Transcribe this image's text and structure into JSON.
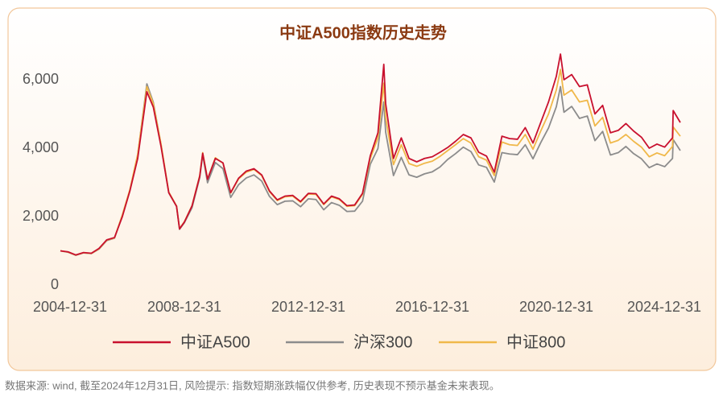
{
  "chart_data": {
    "type": "line",
    "title": "中证A500指数历史走势",
    "note": "数据来源: wind, 截至2024年12月31日, 风险提示: 指数短期涨跌幅仅供参考, 历史表现不预示基金未来表现。",
    "x": [
      "2004-12-31",
      "2005-03-31",
      "2005-06-30",
      "2005-09-30",
      "2005-12-31",
      "2006-03-31",
      "2006-06-30",
      "2006-09-30",
      "2006-12-31",
      "2007-03-31",
      "2007-06-30",
      "2007-10-16",
      "2007-12-31",
      "2008-03-31",
      "2008-06-30",
      "2008-09-30",
      "2008-11-04",
      "2008-12-31",
      "2009-03-31",
      "2009-06-30",
      "2009-08-04",
      "2009-09-30",
      "2009-12-31",
      "2010-03-31",
      "2010-06-30",
      "2010-09-30",
      "2010-12-31",
      "2011-03-31",
      "2011-06-30",
      "2011-09-30",
      "2011-12-31",
      "2012-03-31",
      "2012-06-30",
      "2012-09-30",
      "2012-12-31",
      "2013-03-31",
      "2013-06-30",
      "2013-09-30",
      "2013-12-31",
      "2014-03-31",
      "2014-06-30",
      "2014-09-30",
      "2014-12-31",
      "2015-03-31",
      "2015-06-08",
      "2015-06-30",
      "2015-09-30",
      "2015-12-31",
      "2016-03-31",
      "2016-06-30",
      "2016-09-30",
      "2016-12-31",
      "2017-03-31",
      "2017-06-30",
      "2017-09-30",
      "2017-12-31",
      "2018-03-31",
      "2018-06-30",
      "2018-09-30",
      "2018-12-31",
      "2019-03-31",
      "2019-06-30",
      "2019-09-30",
      "2019-12-31",
      "2020-03-31",
      "2020-06-30",
      "2020-09-30",
      "2020-12-31",
      "2021-02-18",
      "2021-03-31",
      "2021-06-30",
      "2021-09-30",
      "2021-12-31",
      "2022-03-31",
      "2022-06-30",
      "2022-09-30",
      "2022-12-31",
      "2023-03-31",
      "2023-06-30",
      "2023-09-30",
      "2023-12-31",
      "2024-03-31",
      "2024-06-30",
      "2024-09-30",
      "2024-10-08",
      "2024-12-31"
    ],
    "series": [
      {
        "name": "中证A500",
        "color": "#c8102e",
        "values": [
          1000,
          970,
          880,
          950,
          930,
          1070,
          1320,
          1390,
          2000,
          2760,
          3700,
          5650,
          5200,
          4050,
          2700,
          2300,
          1640,
          1840,
          2310,
          3180,
          3850,
          3090,
          3700,
          3570,
          2700,
          3120,
          3330,
          3400,
          3220,
          2750,
          2490,
          2600,
          2620,
          2440,
          2680,
          2670,
          2370,
          2600,
          2520,
          2320,
          2340,
          2680,
          3780,
          4450,
          6450,
          5300,
          3700,
          4300,
          3700,
          3600,
          3700,
          3750,
          3880,
          4020,
          4200,
          4400,
          4300,
          3880,
          3770,
          3300,
          4350,
          4280,
          4260,
          4600,
          4150,
          4750,
          5350,
          6100,
          6750,
          6000,
          6150,
          5800,
          5850,
          5000,
          5250,
          4450,
          4520,
          4720,
          4500,
          4320,
          4000,
          4120,
          4030,
          4300,
          5100,
          4750
        ]
      },
      {
        "name": "沪深300",
        "color": "#8c8c8c",
        "values": [
          1000,
          960,
          870,
          940,
          920,
          1050,
          1300,
          1370,
          2040,
          2780,
          3800,
          5880,
          5340,
          4100,
          2700,
          2300,
          1630,
          1820,
          2260,
          3140,
          3800,
          2990,
          3580,
          3400,
          2560,
          2930,
          3130,
          3220,
          3040,
          2590,
          2350,
          2450,
          2460,
          2290,
          2520,
          2500,
          2200,
          2410,
          2330,
          2150,
          2160,
          2450,
          3530,
          3990,
          5350,
          4470,
          3200,
          3730,
          3220,
          3150,
          3250,
          3310,
          3450,
          3670,
          3840,
          4030,
          3900,
          3510,
          3440,
          3010,
          3870,
          3830,
          3810,
          4100,
          3690,
          4160,
          4590,
          5210,
          5800,
          5050,
          5220,
          4870,
          4940,
          4220,
          4490,
          3800,
          3870,
          4050,
          3840,
          3690,
          3430,
          3540,
          3460,
          3700,
          4250,
          3930
        ]
      },
      {
        "name": "中证800",
        "color": "#f0b84a",
        "values": [
          1000,
          965,
          875,
          945,
          925,
          1060,
          1310,
          1380,
          2050,
          2800,
          3820,
          5800,
          5300,
          4120,
          2720,
          2310,
          1650,
          1850,
          2320,
          3200,
          3870,
          3100,
          3720,
          3560,
          2690,
          3100,
          3300,
          3380,
          3200,
          2730,
          2470,
          2580,
          2600,
          2420,
          2660,
          2650,
          2350,
          2580,
          2500,
          2300,
          2320,
          2650,
          3700,
          4300,
          5900,
          4900,
          3520,
          4100,
          3550,
          3470,
          3560,
          3620,
          3760,
          3930,
          4100,
          4280,
          4150,
          3750,
          3650,
          3200,
          4180,
          4100,
          4080,
          4400,
          3970,
          4500,
          5000,
          5700,
          6300,
          5550,
          5700,
          5350,
          5400,
          4650,
          4900,
          4150,
          4230,
          4400,
          4200,
          4030,
          3750,
          3860,
          3780,
          4050,
          4620,
          4350
        ]
      }
    ],
    "xlim": [
      "2004-12-31",
      "2024-12-31"
    ],
    "xticks": [
      "2004-12-31",
      "2008-12-31",
      "2012-12-31",
      "2016-12-31",
      "2020-12-31",
      "2024-12-31"
    ],
    "ylim": [
      0,
      7000
    ],
    "yticks": [
      0,
      {
        "value": 2000,
        "label": "2,000"
      },
      {
        "value": 4000,
        "label": "4,000"
      },
      {
        "value": 6000,
        "label": "6,000"
      }
    ],
    "grid": false,
    "legend": "bottom"
  }
}
